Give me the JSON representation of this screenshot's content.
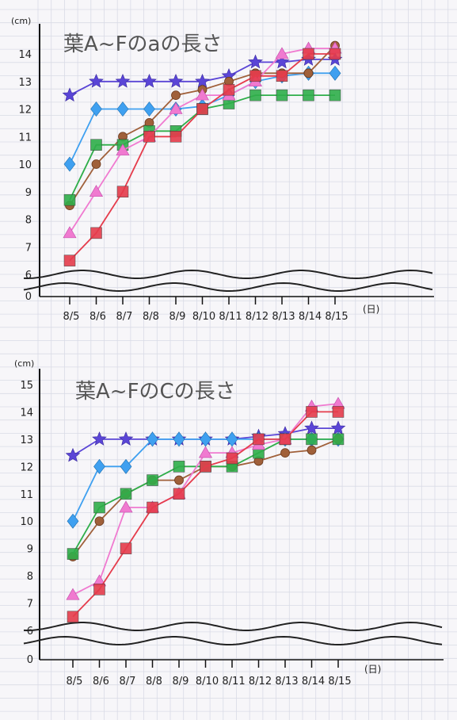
{
  "chart_data": [
    {
      "type": "line",
      "title": "葉A~Fのaの長さ",
      "ylabel": "(cm)",
      "xlabel": "(日)",
      "y_ticks": [
        "0",
        "6",
        "7",
        "8",
        "9",
        "10",
        "11",
        "12",
        "13",
        "14"
      ],
      "ylim": [
        6,
        14.5
      ],
      "axis_break": true,
      "grid": true,
      "categories": [
        "8/5",
        "8/6",
        "8/7",
        "8/8",
        "8/9",
        "8/10",
        "8/11",
        "8/12",
        "8/13",
        "8/14",
        "8/15"
      ],
      "series": [
        {
          "color": "#5a45d6",
          "marker": "star",
          "values": [
            12.5,
            13.0,
            13.0,
            13.0,
            13.0,
            13.0,
            13.2,
            13.7,
            13.7,
            13.8,
            13.8
          ]
        },
        {
          "color": "#3fa0f0",
          "marker": "diamond",
          "values": [
            10.0,
            12.0,
            12.0,
            12.0,
            12.0,
            12.1,
            12.5,
            13.0,
            13.2,
            13.3,
            13.3
          ]
        },
        {
          "color": "#a0603a",
          "marker": "circle",
          "values": [
            8.5,
            10.0,
            11.0,
            11.5,
            12.5,
            12.7,
            13.0,
            13.3,
            13.3,
            13.3,
            14.3
          ]
        },
        {
          "color": "#2fae4a",
          "marker": "square",
          "values": [
            8.7,
            10.7,
            10.7,
            11.2,
            11.2,
            12.0,
            12.2,
            12.5,
            12.5,
            12.5,
            12.5
          ]
        },
        {
          "color": "#f07ad0",
          "marker": "triangle",
          "values": [
            7.5,
            9.0,
            10.5,
            11.0,
            12.0,
            12.5,
            12.5,
            13.0,
            14.0,
            14.2,
            14.2
          ]
        },
        {
          "color": "#e53c4c",
          "marker": "square",
          "values": [
            6.5,
            7.5,
            9.0,
            11.0,
            11.0,
            12.0,
            12.7,
            13.2,
            13.2,
            14.0,
            14.0
          ]
        }
      ]
    },
    {
      "type": "line",
      "title": "葉A~FのCの長さ",
      "ylabel": "(cm)",
      "xlabel": "(日)",
      "y_ticks": [
        "0",
        "6",
        "7",
        "8",
        "9",
        "10",
        "11",
        "12",
        "13",
        "14",
        "15"
      ],
      "ylim": [
        6,
        15.5
      ],
      "axis_break": true,
      "grid": true,
      "categories": [
        "8/5",
        "8/6",
        "8/7",
        "8/8",
        "8/9",
        "8/10",
        "8/11",
        "8/12",
        "8/13",
        "8/14",
        "8/15"
      ],
      "series": [
        {
          "color": "#5a45d6",
          "marker": "star",
          "values": [
            12.4,
            13.0,
            13.0,
            13.0,
            13.0,
            13.0,
            13.0,
            13.1,
            13.2,
            13.4,
            13.4
          ]
        },
        {
          "color": "#3fa0f0",
          "marker": "diamond",
          "values": [
            10.0,
            12.0,
            12.0,
            13.0,
            13.0,
            13.0,
            13.0,
            13.0,
            13.0,
            13.0,
            13.0
          ]
        },
        {
          "color": "#a0603a",
          "marker": "circle",
          "values": [
            8.7,
            10.0,
            11.0,
            11.5,
            11.5,
            12.0,
            12.0,
            12.2,
            12.5,
            12.6,
            13.0
          ]
        },
        {
          "color": "#2fae4a",
          "marker": "square",
          "values": [
            8.8,
            10.5,
            11.0,
            11.5,
            12.0,
            12.0,
            12.0,
            12.5,
            13.0,
            13.0,
            13.0
          ]
        },
        {
          "color": "#f07ad0",
          "marker": "triangle",
          "values": [
            7.3,
            7.8,
            10.5,
            10.5,
            11.0,
            12.5,
            12.5,
            12.8,
            13.0,
            14.2,
            14.3
          ]
        },
        {
          "color": "#e53c4c",
          "marker": "square",
          "values": [
            6.5,
            7.5,
            9.0,
            10.5,
            11.0,
            12.0,
            12.3,
            13.0,
            13.0,
            14.0,
            14.0
          ]
        }
      ]
    }
  ]
}
